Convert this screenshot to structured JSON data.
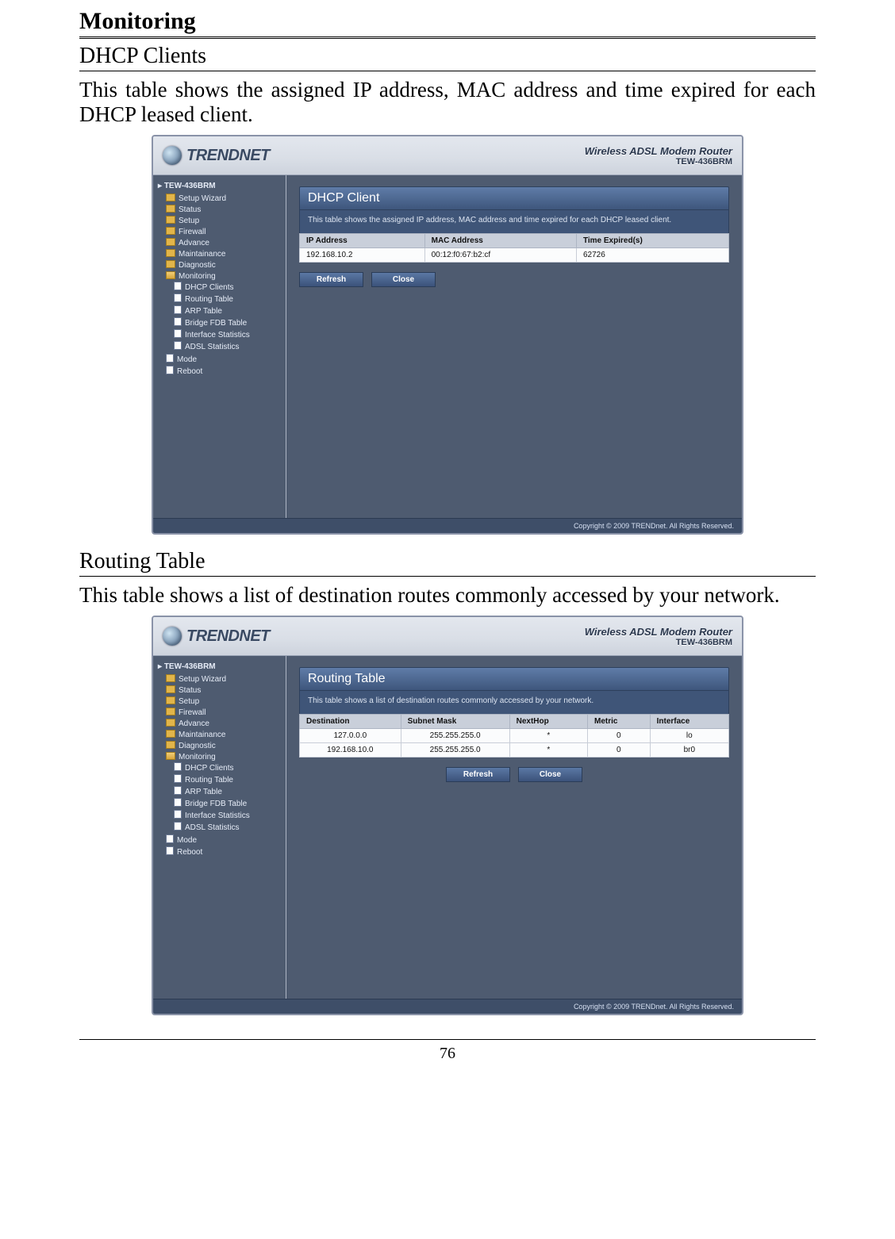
{
  "page": {
    "heading": "Monitoring",
    "pageNumber": "76",
    "section1": {
      "title": "DHCP Clients",
      "description": "This table shows the assigned IP address, MAC address and time expired for each DHCP leased client."
    },
    "section2": {
      "title": "Routing Table",
      "description": "This table shows a list of destination routes commonly accessed by your network."
    }
  },
  "router": {
    "brand": "TRENDNET",
    "productLine1": "Wireless ADSL Modem Router",
    "productLine2": "TEW-436BRM",
    "copyright": "Copyright © 2009 TRENDnet. All Rights Reserved.",
    "nav": {
      "root": "TEW-436BRM",
      "items": [
        "Setup Wizard",
        "Status",
        "Setup",
        "Firewall",
        "Advance",
        "Maintainance",
        "Diagnostic"
      ],
      "monitoring": {
        "label": "Monitoring",
        "children": [
          "DHCP Clients",
          "Routing Table",
          "ARP Table",
          "Bridge FDB Table",
          "Interface Statistics",
          "ADSL Statistics"
        ]
      },
      "tail": [
        "Mode",
        "Reboot"
      ]
    },
    "buttons": {
      "refresh": "Refresh",
      "close": "Close"
    }
  },
  "dhcp": {
    "panelTitle": "DHCP Client",
    "panelDesc": "This table shows the assigned IP address, MAC address and time expired for each DHCP leased client.",
    "columns": [
      "IP Address",
      "MAC Address",
      "Time Expired(s)"
    ],
    "rows": [
      [
        "192.168.10.2",
        "00:12:f0:67:b2:cf",
        "62726"
      ]
    ]
  },
  "routing": {
    "panelTitle": "Routing Table",
    "panelDesc": "This table shows a list of destination routes commonly accessed by your network.",
    "columns": [
      "Destination",
      "Subnet Mask",
      "NextHop",
      "Metric",
      "Interface"
    ],
    "rows": [
      [
        "127.0.0.0",
        "255.255.255.0",
        "*",
        "0",
        "lo"
      ],
      [
        "192.168.10.0",
        "255.255.255.0",
        "*",
        "0",
        "br0"
      ]
    ]
  },
  "colors": {
    "pageBg": "#ffffff",
    "routerBg": "#4e5b70",
    "panelHeader": "#4a6690",
    "tableHeader": "#c9cfda",
    "buttonBg": "#4a6690"
  }
}
